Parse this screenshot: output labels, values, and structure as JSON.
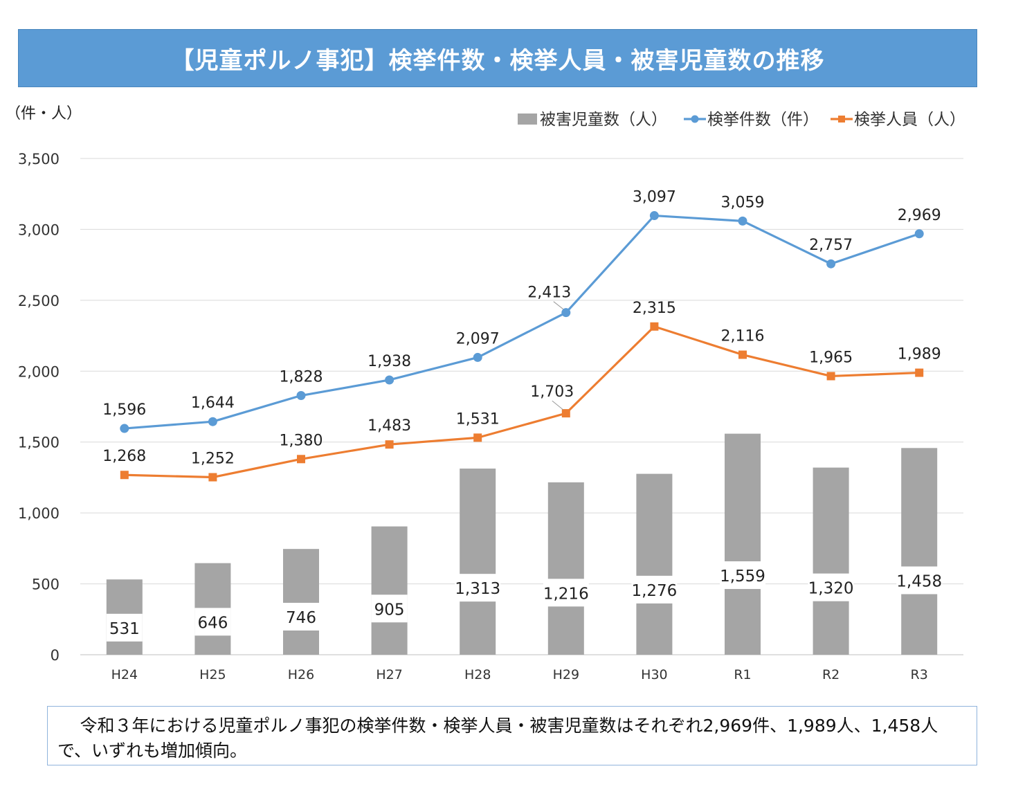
{
  "title": "【児童ポルノ事犯】検挙件数・検挙人員・被害児童数の推移",
  "unit_label": "（件・人）",
  "note": "令和３年における児童ポルノ事犯の検挙件数・検挙人員・被害児童数はそれぞれ2,969件、1,989人、1,458人で、いずれも増加傾向。",
  "colors": {
    "bars": "#a5a5a5",
    "cases": "#5b9bd5",
    "persons": "#ed7d31",
    "title_bg": "#5b9bd5"
  },
  "chart_data": {
    "type": "bar+line",
    "categories": [
      "H24",
      "H25",
      "H26",
      "H27",
      "H28",
      "H29",
      "H30",
      "R1",
      "R2",
      "R3"
    ],
    "ylim": [
      0,
      3500
    ],
    "yticks": [
      0,
      500,
      1000,
      1500,
      2000,
      2500,
      3000,
      3500
    ],
    "ytick_labels": [
      "0",
      "500",
      "1,000",
      "1,500",
      "2,000",
      "2,500",
      "3,000",
      "3,500"
    ],
    "grid": true,
    "legend_position": "top-right",
    "series": [
      {
        "name": "被害児童数（人）",
        "kind": "bar",
        "values": [
          531,
          646,
          746,
          905,
          1313,
          1216,
          1276,
          1559,
          1320,
          1458
        ],
        "labels": [
          "531",
          "646",
          "746",
          "905",
          "1,313",
          "1,216",
          "1,276",
          "1,559",
          "1,320",
          "1,458"
        ]
      },
      {
        "name": "検挙件数（件）",
        "kind": "line",
        "marker": "circle",
        "values": [
          1596,
          1644,
          1828,
          1938,
          2097,
          2413,
          3097,
          3059,
          2757,
          2969
        ],
        "labels": [
          "1,596",
          "1,644",
          "1,828",
          "1,938",
          "2,097",
          "2,413",
          "3,097",
          "3,059",
          "2,757",
          "2,969"
        ]
      },
      {
        "name": "検挙人員（人）",
        "kind": "line",
        "marker": "square",
        "values": [
          1268,
          1252,
          1380,
          1483,
          1531,
          1703,
          2315,
          2116,
          1965,
          1989
        ],
        "labels": [
          "1,268",
          "1,252",
          "1,380",
          "1,483",
          "1,531",
          "1,703",
          "2,315",
          "2,116",
          "1,965",
          "1,989"
        ]
      }
    ]
  }
}
